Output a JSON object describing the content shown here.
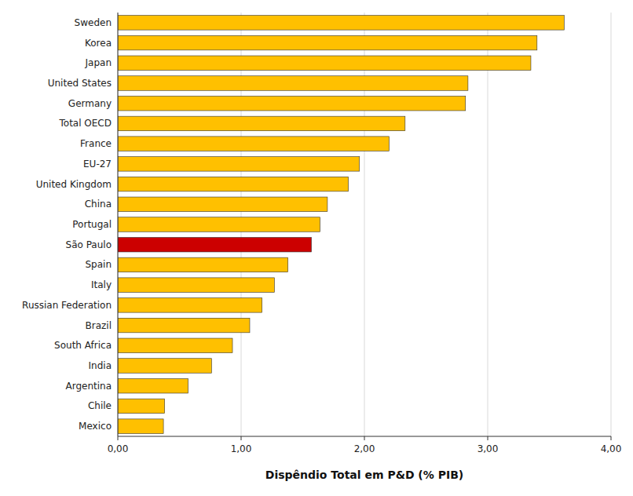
{
  "chart_data": {
    "type": "bar",
    "orientation": "horizontal",
    "categories": [
      "Sweden",
      "Korea",
      "Japan",
      "United States",
      "Germany",
      "Total OECD",
      "France",
      "EU-27",
      "United Kingdom",
      "China",
      "Portugal",
      "São Paulo",
      "Spain",
      "Italy",
      "Russian Federation",
      "Brazil",
      "South Africa",
      "India",
      "Argentina",
      "Chile",
      "Mexico"
    ],
    "values": [
      3.62,
      3.4,
      3.35,
      2.84,
      2.82,
      2.33,
      2.2,
      1.96,
      1.87,
      1.7,
      1.64,
      1.57,
      1.38,
      1.27,
      1.17,
      1.07,
      0.93,
      0.76,
      0.57,
      0.38,
      0.37
    ],
    "colors": [
      "#FFC000",
      "#FFC000",
      "#FFC000",
      "#FFC000",
      "#FFC000",
      "#FFC000",
      "#FFC000",
      "#FFC000",
      "#FFC000",
      "#FFC000",
      "#FFC000",
      "#CC0000",
      "#FFC000",
      "#FFC000",
      "#FFC000",
      "#FFC000",
      "#FFC000",
      "#FFC000",
      "#FFC000",
      "#FFC000",
      "#FFC000"
    ],
    "xlabel": "Dispêndio Total em P&D (% PIB)",
    "xlim": [
      0,
      4.0
    ],
    "xticks": [
      {
        "value": 0.0,
        "label": "0,00"
      },
      {
        "value": 1.0,
        "label": "1,00"
      },
      {
        "value": 2.0,
        "label": "2,00"
      },
      {
        "value": 3.0,
        "label": "3,00"
      },
      {
        "value": 4.0,
        "label": "4,00"
      }
    ],
    "grid": true
  }
}
